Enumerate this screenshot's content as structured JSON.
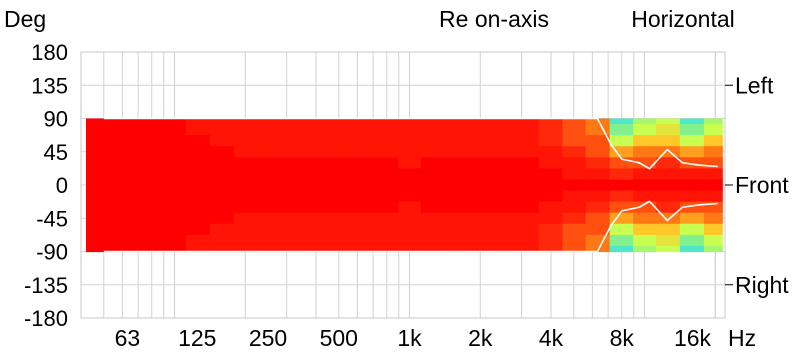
{
  "chart_data": {
    "type": "heatmap",
    "title": "Re on-axis",
    "subtitle": "Horizontal",
    "ylabel": "Deg",
    "xunit": "Hz",
    "xscale": "log",
    "xlim": [
      40,
      22000
    ],
    "ylim": [
      -180,
      180
    ],
    "grid": true,
    "y_ticks": [
      180,
      135,
      90,
      45,
      0,
      -45,
      -90,
      -135,
      -180
    ],
    "y_tick_labels": [
      "180",
      "135",
      "90",
      "45",
      "0",
      "-45",
      "-90",
      "-135",
      "-180"
    ],
    "x_ticks": [
      63,
      125,
      250,
      500,
      1000,
      2000,
      4000,
      8000,
      16000
    ],
    "x_tick_labels": [
      "63",
      "125",
      "250",
      "500",
      "1k",
      "2k",
      "4k",
      "8k",
      "16k"
    ],
    "direction_labels": [
      {
        "text": "Left",
        "angle": 135
      },
      {
        "text": "Front",
        "angle": 0
      },
      {
        "text": "Right",
        "angle": -135
      }
    ],
    "angles": [
      90,
      75,
      60,
      45,
      30,
      15,
      0,
      -15,
      -30,
      -45,
      -60,
      -75,
      -90
    ],
    "freq_bins": [
      45,
      55,
      63,
      80,
      100,
      125,
      160,
      200,
      250,
      315,
      400,
      500,
      630,
      800,
      1000,
      1250,
      1600,
      2000,
      2500,
      3150,
      4000,
      5000,
      6300,
      8000,
      10000,
      12500,
      16000,
      20000
    ],
    "values_dB": [
      [
        0,
        0,
        0,
        0,
        0,
        -1,
        -1,
        -1,
        -1,
        -1,
        -1,
        -1,
        -1,
        -1,
        -1,
        -1,
        -1,
        -1,
        -1,
        -1,
        -2,
        -3,
        -4,
        -12,
        -9,
        -8,
        -12,
        -9
      ],
      [
        0,
        0,
        0,
        0,
        0,
        -1,
        -1,
        -1,
        -1,
        -1,
        -1,
        -1,
        -1,
        -1,
        -1,
        -1,
        -1,
        -1,
        -1,
        -1,
        -2,
        -3,
        -4,
        -10,
        -8,
        -7,
        -10,
        -8
      ],
      [
        0,
        0,
        0,
        0,
        0,
        0,
        -1,
        -1,
        -1,
        -1,
        -1,
        -1,
        -1,
        -1,
        -1,
        -1,
        -1,
        -1,
        -1,
        -1,
        -2,
        -3,
        -3,
        -8,
        -6,
        -6,
        -8,
        -6
      ],
      [
        0,
        0,
        0,
        0,
        0,
        0,
        0,
        -1,
        -1,
        -1,
        -1,
        -1,
        -1,
        -1,
        -1,
        -1,
        -1,
        -1,
        -1,
        -1,
        -1,
        -2,
        -3,
        -5,
        -4,
        -4,
        -5,
        -4
      ],
      [
        0,
        0,
        0,
        0,
        0,
        0,
        0,
        0,
        0,
        0,
        0,
        0,
        0,
        0,
        -1,
        0,
        0,
        0,
        0,
        0,
        -1,
        -1,
        -2,
        -3,
        -3,
        -2,
        -3,
        -3
      ],
      [
        0,
        0,
        0,
        0,
        0,
        0,
        0,
        0,
        0,
        0,
        0,
        0,
        0,
        0,
        0,
        0,
        0,
        0,
        0,
        0,
        0,
        -1,
        -1,
        -2,
        -1,
        -1,
        -1,
        -1
      ],
      [
        0,
        0,
        0,
        0,
        0,
        0,
        0,
        0,
        0,
        0,
        0,
        0,
        0,
        0,
        0,
        0,
        0,
        0,
        0,
        0,
        0,
        0,
        0,
        0,
        0,
        0,
        0,
        0
      ],
      [
        0,
        0,
        0,
        0,
        0,
        0,
        0,
        0,
        0,
        0,
        0,
        0,
        0,
        0,
        0,
        0,
        0,
        0,
        0,
        0,
        0,
        -1,
        -1,
        -2,
        -1,
        -1,
        -1,
        -1
      ],
      [
        0,
        0,
        0,
        0,
        0,
        0,
        0,
        0,
        0,
        0,
        0,
        0,
        0,
        0,
        -1,
        0,
        0,
        0,
        0,
        0,
        -1,
        -1,
        -2,
        -3,
        -3,
        -2,
        -3,
        -3
      ],
      [
        0,
        0,
        0,
        0,
        0,
        0,
        0,
        -1,
        -1,
        -1,
        -1,
        -1,
        -1,
        -1,
        -1,
        -1,
        -1,
        -1,
        -1,
        -1,
        -1,
        -2,
        -3,
        -5,
        -4,
        -4,
        -5,
        -4
      ],
      [
        0,
        0,
        0,
        0,
        0,
        0,
        -1,
        -1,
        -1,
        -1,
        -1,
        -1,
        -1,
        -1,
        -1,
        -1,
        -1,
        -1,
        -1,
        -1,
        -2,
        -3,
        -3,
        -8,
        -6,
        -6,
        -8,
        -6
      ],
      [
        0,
        0,
        0,
        0,
        0,
        -1,
        -1,
        -1,
        -1,
        -1,
        -1,
        -1,
        -1,
        -1,
        -1,
        -1,
        -1,
        -1,
        -1,
        -1,
        -2,
        -3,
        -4,
        -10,
        -8,
        -7,
        -10,
        -8
      ],
      [
        0,
        0,
        0,
        0,
        0,
        -1,
        -1,
        -1,
        -1,
        -1,
        -1,
        -1,
        -1,
        -1,
        -1,
        -1,
        -1,
        -1,
        -1,
        -1,
        -2,
        -3,
        -4,
        -12,
        -9,
        -8,
        -12,
        -9
      ]
    ],
    "contour_angle": [
      {
        "freq": 50,
        "deg": 90
      },
      {
        "freq": 4000,
        "deg": 90
      },
      {
        "freq": 6300,
        "deg": 90
      },
      {
        "freq": 7200,
        "deg": 55
      },
      {
        "freq": 8000,
        "deg": 35
      },
      {
        "freq": 9500,
        "deg": 30
      },
      {
        "freq": 10500,
        "deg": 22
      },
      {
        "freq": 12500,
        "deg": 48
      },
      {
        "freq": 14500,
        "deg": 30
      },
      {
        "freq": 17000,
        "deg": 27
      },
      {
        "freq": 20500,
        "deg": 25
      }
    ]
  }
}
